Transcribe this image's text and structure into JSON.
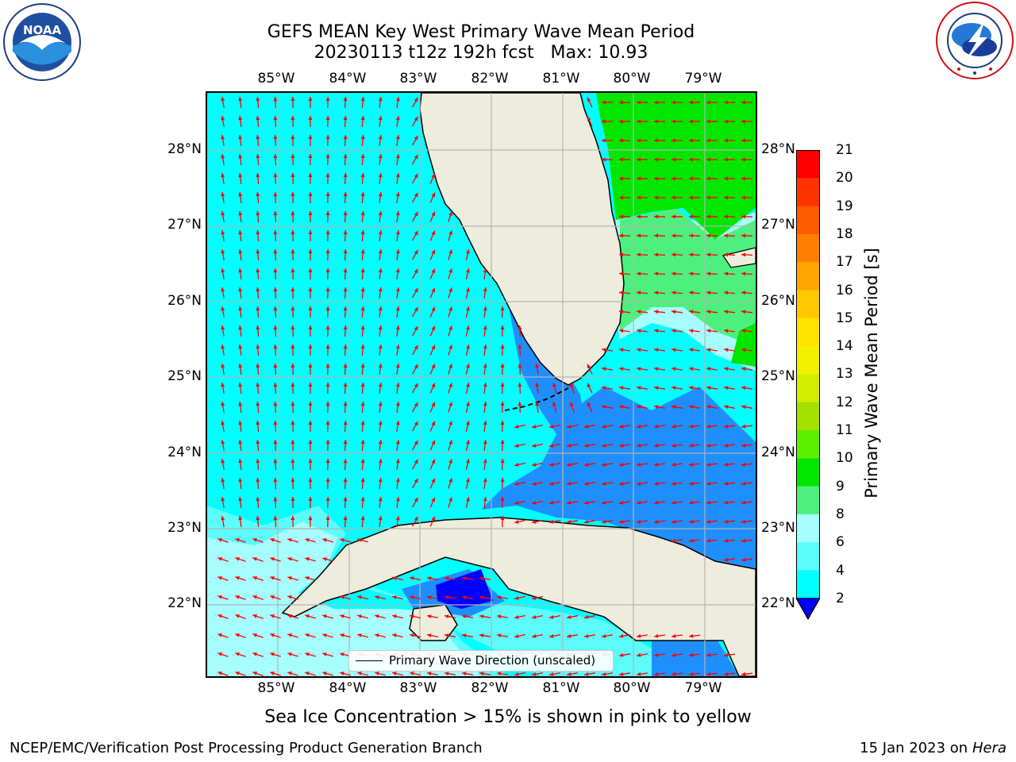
{
  "title": {
    "line1": "GEFS MEAN Key West Primary Wave Mean Period",
    "line2": "20230113 t12z 192h fcst   Max: 10.93"
  },
  "axes": {
    "lon_labels": [
      "85°W",
      "84°W",
      "83°W",
      "82°W",
      "81°W",
      "80°W",
      "79°W"
    ],
    "lat_labels": [
      "28°N",
      "27°N",
      "26°N",
      "25°N",
      "24°N",
      "23°N",
      "22°N"
    ]
  },
  "colorbar": {
    "label": "Primary Wave Mean Period [s]",
    "ticks": [
      "21",
      "20",
      "19",
      "18",
      "17",
      "16",
      "15",
      "14",
      "13",
      "12",
      "11",
      "10",
      "9",
      "8",
      "6",
      "4",
      "2"
    ],
    "colors": [
      "#ff0000",
      "#ff3300",
      "#ff5a00",
      "#ff8000",
      "#ffa500",
      "#ffc800",
      "#ffe400",
      "#f2f200",
      "#d4ee00",
      "#a6e000",
      "#5ef000",
      "#00e600",
      "#4df07f",
      "#a6fffe",
      "#5cfcfb",
      "#00ffff",
      "#1f8fff",
      "#0000ff"
    ]
  },
  "legend": {
    "label": "Primary Wave Direction (unscaled)"
  },
  "sea_ice_note": "Sea Ice Concentration > 15% is shown in pink to yellow",
  "footer": {
    "left": "NCEP/EMC/Verification Post Processing Product Generation Branch",
    "right_date": "15 Jan 2023 on ",
    "right_machine": "Hera"
  },
  "logos": {
    "left": "NOAA",
    "right": "NATIONAL WEATHER SERVICE"
  },
  "map": {
    "ocean_color": "#00ffff",
    "land_color": "#eeecdc",
    "arrow_color": "#ff0000"
  }
}
